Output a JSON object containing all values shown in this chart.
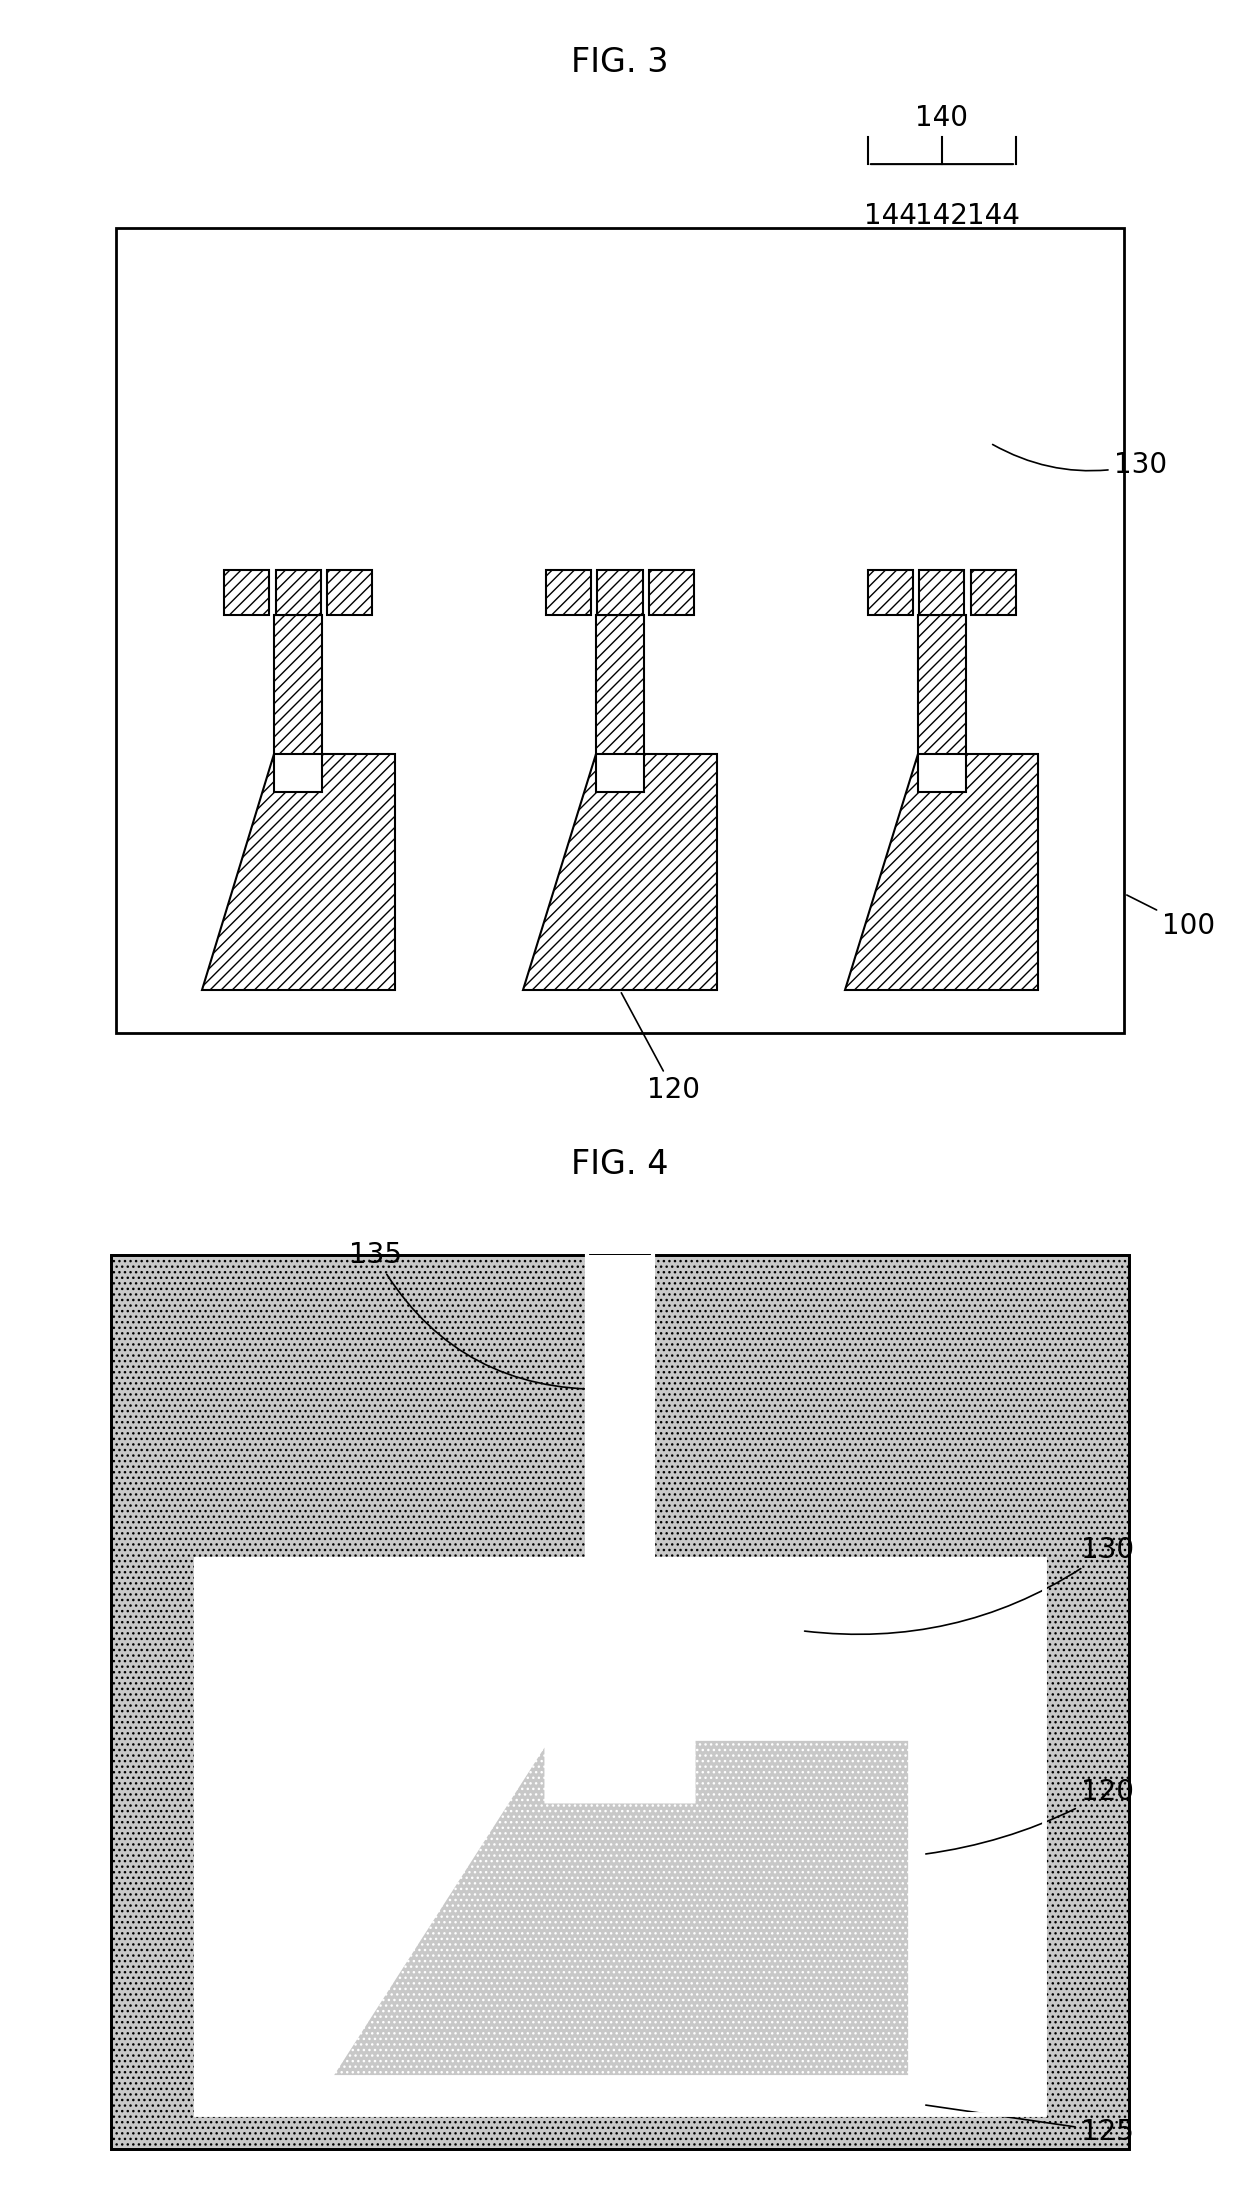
{
  "fig3_title": "FIG. 3",
  "fig4_title": "FIG. 4",
  "hatch_pattern": "///",
  "hatch_color": "#555555",
  "fill_color": "#cccccc",
  "bg_color": "#ffffff",
  "border_color": "#000000",
  "label_fontsize": 20,
  "title_fontsize": 24,
  "label_color": "#000000"
}
